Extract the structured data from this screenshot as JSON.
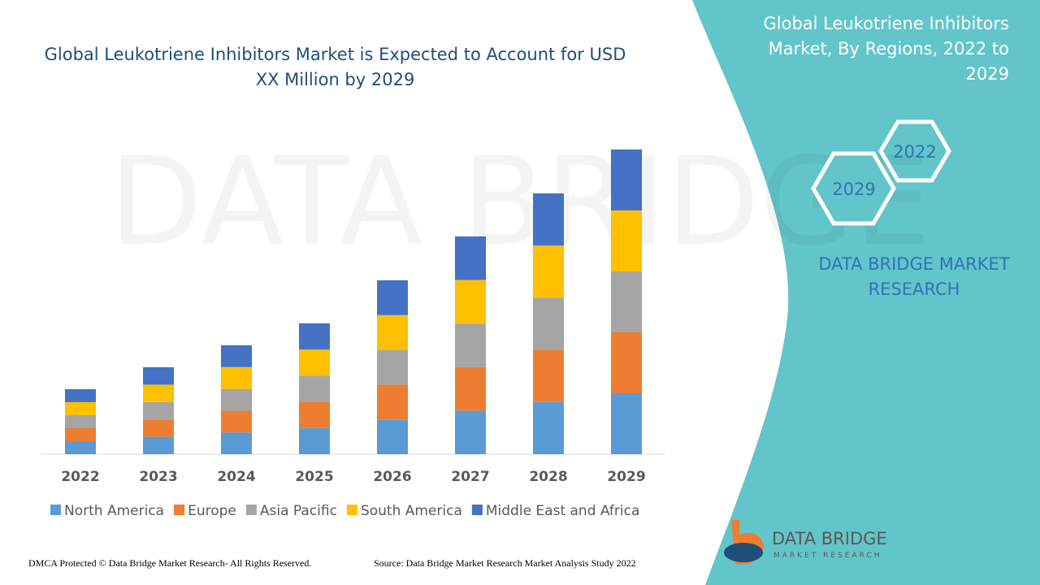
{
  "chart_data": {
    "type": "stacked_bar",
    "title": "Global Leukotriene Inhibitors Market is Expected to Account for USD XX Million by 2029",
    "categories": [
      "2022",
      "2023",
      "2024",
      "2025",
      "2026",
      "2027",
      "2028",
      "2029"
    ],
    "series": [
      {
        "name": "North America",
        "color": "#5b9bd5",
        "values": [
          16,
          21.4,
          26.8,
          32.2,
          42.8,
          53.6,
          64.2,
          75
        ]
      },
      {
        "name": "Europe",
        "color": "#ed7d31",
        "values": [
          16,
          21.4,
          26.8,
          32.2,
          42.8,
          53.6,
          64.2,
          75
        ]
      },
      {
        "name": "Asia Pacific",
        "color": "#a5a5a5",
        "values": [
          16,
          21.4,
          26.8,
          32.2,
          42.8,
          53.6,
          64.2,
          75
        ]
      },
      {
        "name": "South America",
        "color": "#ffc000",
        "values": [
          16,
          21.4,
          26.8,
          32.2,
          42.8,
          53.6,
          64.2,
          75
        ]
      },
      {
        "name": "Middle East and Africa",
        "color": "#4472c4",
        "values": [
          16,
          21.4,
          26.8,
          32.2,
          42.8,
          53.6,
          64.2,
          75
        ]
      }
    ],
    "ylim": [
      0,
      375
    ]
  },
  "side_panel": {
    "title": "Global Leukotriene Inhibitors Market, By Regions, 2022 to 2029",
    "hexagons": [
      "2022",
      "2029"
    ],
    "brand": "DATA BRIDGE MARKET RESEARCH"
  },
  "logo": {
    "name": "DATA BRIDGE",
    "tagline": "MARKET RESEARCH"
  },
  "footer": {
    "left": "DMCA Protected © Data Bridge Market Research- All Rights Reserved.",
    "right": "Source: Data Bridge Market Research Market Analysis Study 2022"
  }
}
